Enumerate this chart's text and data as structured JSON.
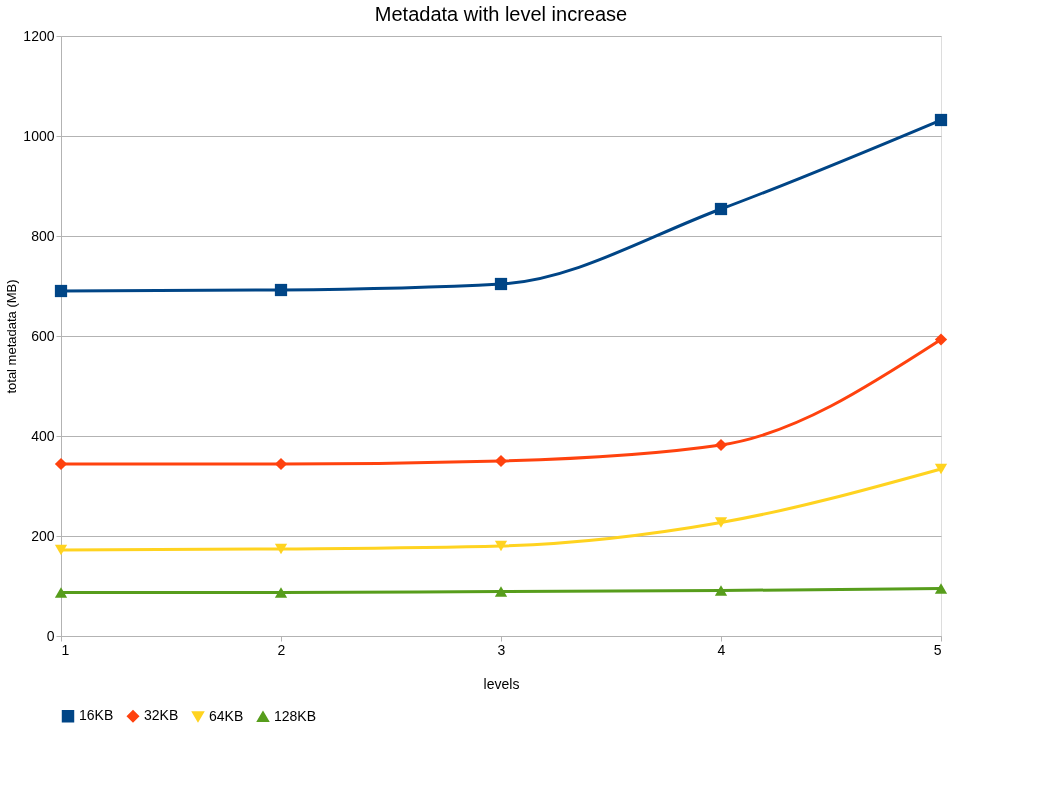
{
  "chart_data": {
    "type": "line",
    "title": "Metadata with level increase",
    "xlabel": "levels",
    "ylabel": "total metadata (MB)",
    "x": [
      1,
      2,
      3,
      4,
      5
    ],
    "series": [
      {
        "name": "16KB",
        "color": "#004586",
        "marker": "square",
        "values": [
          690,
          692,
          704,
          854,
          1032
        ]
      },
      {
        "name": "32KB",
        "color": "#ff420e",
        "marker": "diamond",
        "values": [
          344,
          344,
          350,
          382,
          593
        ]
      },
      {
        "name": "64KB",
        "color": "#ffd320",
        "marker": "triangle-down",
        "values": [
          172,
          174,
          180,
          227,
          334
        ]
      },
      {
        "name": "128KB",
        "color": "#579d1c",
        "marker": "triangle-up",
        "values": [
          87,
          87,
          89,
          91,
          95
        ]
      }
    ],
    "xlim": [
      1,
      5
    ],
    "xticks": [
      1,
      2,
      3,
      4,
      5
    ],
    "ylim": [
      0,
      1200
    ],
    "yticks": [
      0,
      200,
      400,
      600,
      800,
      1000,
      1200
    ],
    "grid": "y",
    "legend": "bottom",
    "line_style": "solid"
  }
}
